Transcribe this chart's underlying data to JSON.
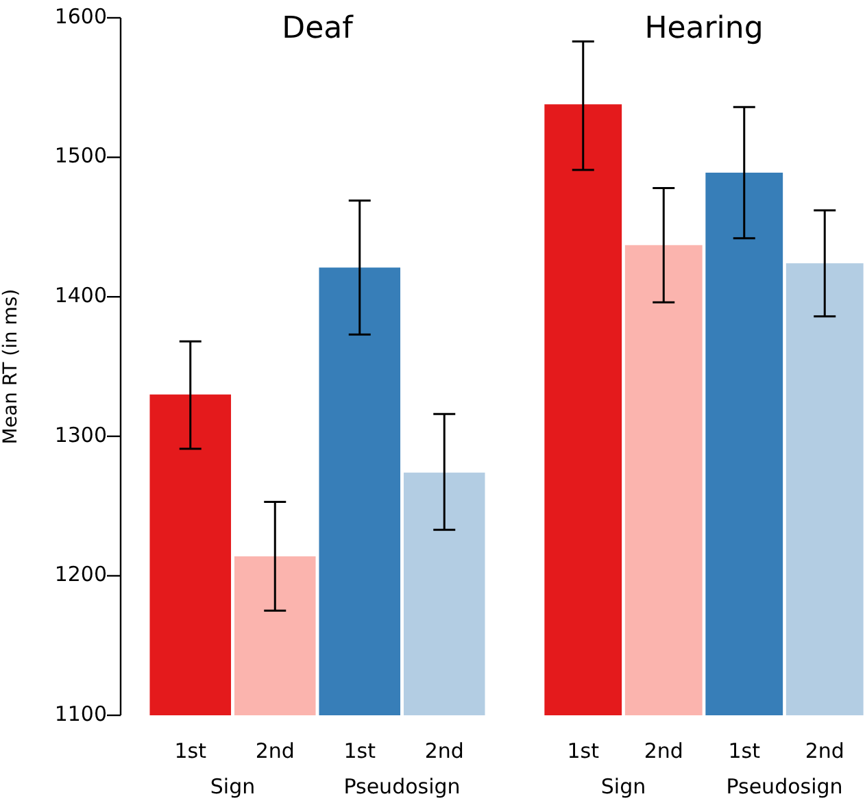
{
  "chart_data": [
    {
      "type": "bar",
      "title": "Deaf",
      "ylabel": "Mean RT (in ms)",
      "categories": [
        "1st",
        "2nd",
        "1st",
        "2nd"
      ],
      "values": [
        1330,
        1214,
        1421,
        1274
      ],
      "colors": [
        "#e41a1c",
        "#fbb4ae",
        "#377eb8",
        "#b3cde3"
      ],
      "errors": [
        [
          1291,
          1368
        ],
        [
          1175,
          1253
        ],
        [
          1373,
          1469
        ],
        [
          1233,
          1316
        ]
      ],
      "ylim": [
        1100,
        1600
      ],
      "yticks": [
        1100,
        1200,
        1300,
        1400,
        1500,
        1600
      ],
      "grid": false,
      "legend": false,
      "annotations": [
        "Sign",
        "Pseudosign"
      ]
    },
    {
      "type": "bar",
      "title": "Hearing",
      "categories": [
        "1st",
        "2nd",
        "1st",
        "2nd"
      ],
      "values": [
        1538,
        1437,
        1489,
        1424
      ],
      "colors": [
        "#e41a1c",
        "#fbb4ae",
        "#377eb8",
        "#b3cde3"
      ],
      "errors": [
        [
          1491,
          1583
        ],
        [
          1396,
          1478
        ],
        [
          1442,
          1536
        ],
        [
          1386,
          1462
        ]
      ],
      "ylim": [
        1100,
        1600
      ],
      "yticks": [
        1100,
        1200,
        1300,
        1400,
        1500,
        1600
      ],
      "grid": false,
      "legend": false,
      "tick_labels": "x",
      "annotations": [
        "Sign",
        "Pseudosign"
      ]
    }
  ]
}
